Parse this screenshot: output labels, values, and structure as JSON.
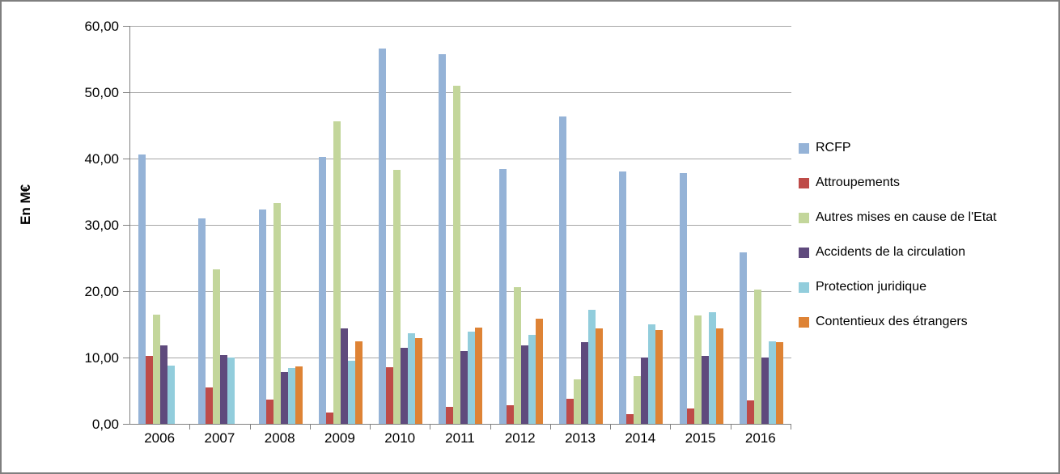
{
  "chart_data": {
    "type": "bar",
    "title": "",
    "ylabel": "En M€",
    "xlabel": "",
    "categories": [
      "2006",
      "2007",
      "2008",
      "2009",
      "2010",
      "2011",
      "2012",
      "2013",
      "2014",
      "2015",
      "2016"
    ],
    "series": [
      {
        "name": "RCFP",
        "color": "#95B3D7",
        "values": [
          40.6,
          31.0,
          32.3,
          40.3,
          56.6,
          55.7,
          38.4,
          46.3,
          38.0,
          37.8,
          25.9
        ]
      },
      {
        "name": "Attroupements",
        "color": "#BE4B48",
        "values": [
          10.2,
          5.5,
          3.7,
          1.7,
          8.5,
          2.6,
          2.8,
          3.8,
          1.5,
          2.3,
          3.5
        ]
      },
      {
        "name": "Autres mises en cause de l'Etat",
        "color": "#C3D69B",
        "values": [
          16.5,
          23.3,
          33.3,
          45.6,
          38.3,
          51.0,
          20.6,
          6.7,
          7.2,
          16.4,
          20.3
        ]
      },
      {
        "name": "Accidents de la circulation",
        "color": "#5F4A7D",
        "values": [
          11.8,
          10.4,
          7.8,
          14.4,
          11.5,
          11.0,
          11.8,
          12.3,
          10.0,
          10.3,
          10.0
        ]
      },
      {
        "name": "Protection juridique",
        "color": "#92CDDC",
        "values": [
          8.8,
          10.0,
          8.4,
          9.5,
          13.7,
          13.9,
          13.4,
          17.2,
          15.0,
          16.8,
          12.4
        ]
      },
      {
        "name": "Contentieux des étrangers",
        "color": "#DE8335",
        "values": [
          null,
          null,
          8.6,
          12.5,
          12.9,
          14.5,
          15.8,
          14.4,
          14.2,
          14.4,
          12.3
        ]
      }
    ],
    "ylim": [
      0,
      60
    ],
    "ytick_step": 10,
    "ytick_labels": [
      "0,00",
      "10,00",
      "20,00",
      "30,00",
      "40,00",
      "50,00",
      "60,00"
    ],
    "grid": true,
    "legend_position": "right",
    "axis_color": "#808080",
    "gridline_color": "#A6A6A6"
  }
}
